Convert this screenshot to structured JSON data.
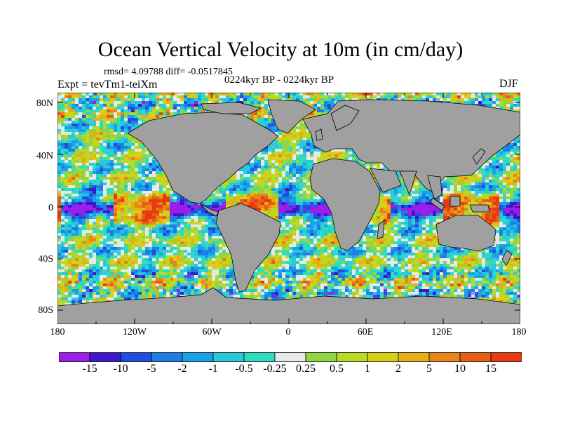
{
  "title": "Ocean Vertical Velocity at 10m (in cm/day)",
  "stats": "rmsd= 4.09788 diff= -0.0517845",
  "period": "0224kyr BP - 0224kyr BP",
  "experiment": "Expt = tevTm1-teiXm",
  "season": "DJF",
  "lat_labels": [
    "80N",
    "40N",
    "0",
    "40S",
    "80S"
  ],
  "lon_labels": [
    "180",
    "120W",
    "60W",
    "0",
    "60E",
    "120E",
    "180"
  ],
  "colorbar": {
    "labels": [
      "-15",
      "-10",
      "-5",
      "-2",
      "-1",
      "-0.5",
      "-0.25",
      "0.25",
      "0.5",
      "1",
      "2",
      "5",
      "10",
      "15"
    ],
    "colors": [
      "#9b1fe8",
      "#3d17c8",
      "#1f4fe0",
      "#1e7ee6",
      "#19a2e8",
      "#2bc8dc",
      "#2edcc0",
      "#e8e8e8",
      "#8fd642",
      "#b7db25",
      "#d8cf1a",
      "#e8ae16",
      "#e88518",
      "#e85e14",
      "#e83a12"
    ]
  },
  "land_color": "#a0a0a0"
}
